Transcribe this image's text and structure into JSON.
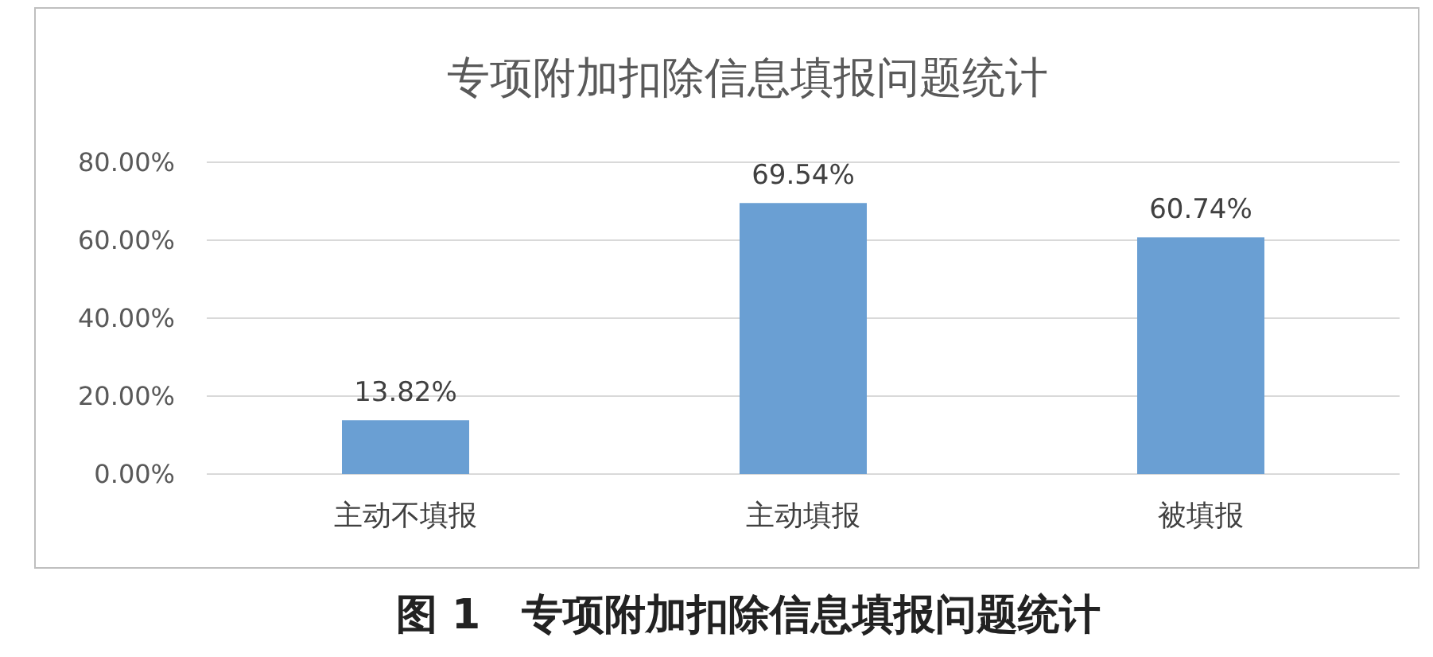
{
  "chart_data": {
    "type": "bar",
    "title": "专项附加扣除信息填报问题统计",
    "categories": [
      "主动不填报",
      "主动填报",
      "被填报"
    ],
    "values": [
      13.82,
      69.54,
      60.74
    ],
    "value_labels": [
      "13.82%",
      "69.54%",
      "60.74%"
    ],
    "color": "#6a9fd3",
    "ylim": [
      0,
      80
    ],
    "yticks": [
      {
        "value": 0,
        "label": "0.00%"
      },
      {
        "value": 20,
        "label": "20.00%"
      },
      {
        "value": 40,
        "label": "40.00%"
      },
      {
        "value": 60,
        "label": "60.00%"
      },
      {
        "value": 80,
        "label": "80.00%"
      }
    ],
    "grid": "y",
    "annotations": [
      "图 1　专项附加扣除信息填报问题统计"
    ]
  }
}
